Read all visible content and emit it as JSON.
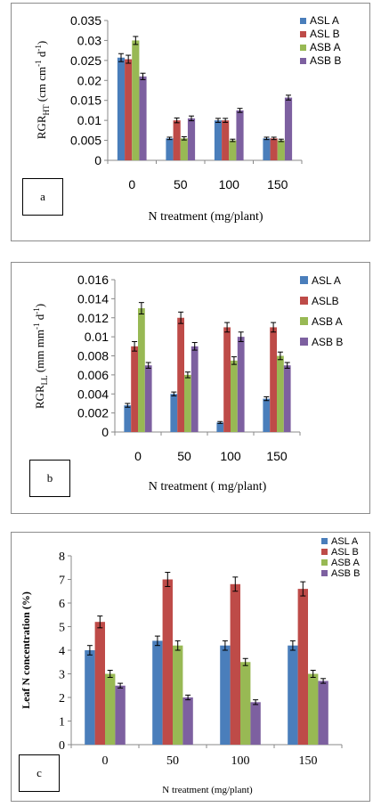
{
  "chart_data": [
    {
      "id": "a",
      "type": "bar",
      "panel_label": "a",
      "categories": [
        "0",
        "50",
        "100",
        "150"
      ],
      "series": [
        {
          "name": "ASL A",
          "color": "#4a7ebb",
          "values": [
            0.0257,
            0.0055,
            0.01,
            0.0055
          ],
          "errors": [
            0.001,
            0.0003,
            0.0005,
            0.0003
          ]
        },
        {
          "name": "ASL B",
          "color": "#be4b48",
          "values": [
            0.0253,
            0.01,
            0.01,
            0.0055
          ],
          "errors": [
            0.001,
            0.0006,
            0.0005,
            0.0003
          ]
        },
        {
          "name": "ASB A",
          "color": "#98b954",
          "values": [
            0.03,
            0.0055,
            0.005,
            0.005
          ],
          "errors": [
            0.001,
            0.0004,
            0.0003,
            0.0003
          ]
        },
        {
          "name": "ASB  B",
          "color": "#7d60a0",
          "values": [
            0.021,
            0.0105,
            0.0125,
            0.0157
          ],
          "errors": [
            0.0008,
            0.0006,
            0.0005,
            0.0006
          ]
        }
      ],
      "xlabel": "N treatment (mg/plant)",
      "ylabel_main": "RGR",
      "ylabel_sub": "HT",
      "ylabel_units_pre": " (cm cm",
      "ylabel_sup1": "-1",
      "ylabel_units_mid": " d",
      "ylabel_sup2": "-1",
      "ylabel_units_post": ")",
      "ylim": [
        0,
        0.035
      ],
      "yticks": [
        "0",
        "0.005",
        "0.01",
        "0.015",
        "0.02",
        "0.025",
        "0.03",
        "0.035"
      ],
      "grid": false,
      "legend": "top-right"
    },
    {
      "id": "b",
      "type": "bar",
      "panel_label": "b",
      "categories": [
        "0",
        "50",
        "100",
        "150"
      ],
      "series": [
        {
          "name": "ASL A",
          "color": "#4a7ebb",
          "values": [
            0.0028,
            0.004,
            0.001,
            0.0035
          ],
          "errors": [
            0.0002,
            0.0002,
            0.0001,
            0.0002
          ]
        },
        {
          "name": "ASLB",
          "color": "#be4b48",
          "values": [
            0.009,
            0.012,
            0.011,
            0.011
          ],
          "errors": [
            0.0005,
            0.0006,
            0.0005,
            0.0005
          ]
        },
        {
          "name": "ASB A",
          "color": "#98b954",
          "values": [
            0.013,
            0.006,
            0.0075,
            0.008
          ],
          "errors": [
            0.0006,
            0.0003,
            0.0004,
            0.0004
          ]
        },
        {
          "name": "ASB B",
          "color": "#7d60a0",
          "values": [
            0.007,
            0.009,
            0.01,
            0.007
          ],
          "errors": [
            0.0003,
            0.0004,
            0.0005,
            0.0003
          ]
        }
      ],
      "xlabel": "N treatment ( mg/plant)",
      "ylabel_main": "RGR",
      "ylabel_sub": "LL",
      "ylabel_units_pre": "  (mm mm",
      "ylabel_sup1": "-1",
      "ylabel_units_mid": " d",
      "ylabel_sup2": "-1",
      "ylabel_units_post": ")",
      "ylim": [
        0,
        0.016
      ],
      "yticks": [
        "0",
        "0.002",
        "0.004",
        "0.006",
        "0.008",
        "0.01",
        "0.012",
        "0.014",
        "0.016"
      ],
      "grid": false,
      "legend": "top-right"
    },
    {
      "id": "c",
      "type": "bar",
      "panel_label": "c",
      "categories": [
        "0",
        "50",
        "100",
        "150"
      ],
      "series": [
        {
          "name": "ASL A",
          "color": "#4a7ebb",
          "values": [
            4.0,
            4.4,
            4.2,
            4.2
          ],
          "errors": [
            0.2,
            0.2,
            0.2,
            0.2
          ]
        },
        {
          "name": "ASL B",
          "color": "#be4b48",
          "values": [
            5.2,
            7.0,
            6.8,
            6.6
          ],
          "errors": [
            0.25,
            0.3,
            0.3,
            0.3
          ]
        },
        {
          "name": "ASB A",
          "color": "#98b954",
          "values": [
            3.0,
            4.2,
            3.5,
            3.0
          ],
          "errors": [
            0.15,
            0.2,
            0.15,
            0.15
          ]
        },
        {
          "name": "ASB B",
          "color": "#7d60a0",
          "values": [
            2.5,
            2.0,
            1.8,
            2.7
          ],
          "errors": [
            0.1,
            0.1,
            0.1,
            0.1
          ]
        }
      ],
      "xlabel": "N treatment (mg/plant)",
      "ylabel_main": "Leaf N concentration (%)",
      "ylim": [
        0,
        8
      ],
      "yticks": [
        "0",
        "1",
        "2",
        "3",
        "4",
        "5",
        "6",
        "7",
        "8"
      ],
      "grid": false,
      "legend": "top-right"
    }
  ]
}
